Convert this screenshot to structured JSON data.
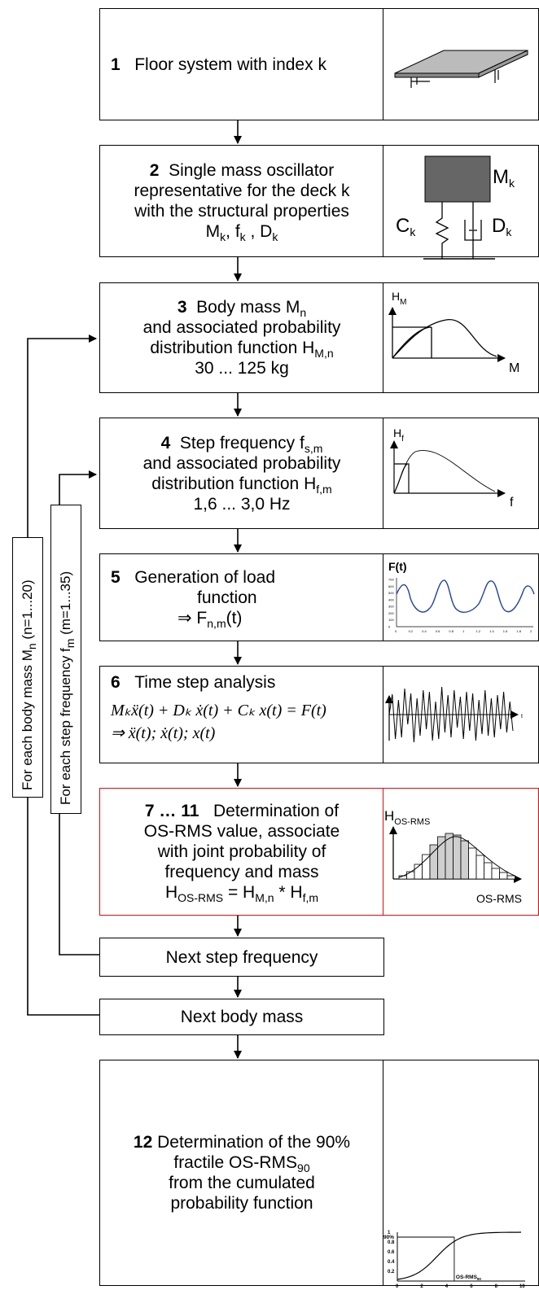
{
  "steps": {
    "s1": {
      "num": "1",
      "text": "Floor system with index k"
    },
    "s2": {
      "num": "2",
      "line1": "Single mass oscillator",
      "line2": "representative for the deck k",
      "line3": "with the structural properties",
      "l4a": "M",
      "l4a_sub": "k",
      "l4b": ", f",
      "l4b_sub": "k",
      "l4c": " , D",
      "l4c_sub": "k"
    },
    "s3": {
      "num": "3",
      "line1": "Body mass M",
      "line1_sub": "n",
      "line2": "and associated probability",
      "line3": "distribution function H",
      "line3_sub": "M,n",
      "line4": "30 ... 125 kg"
    },
    "s4": {
      "num": "4",
      "line1": "Step frequency f",
      "line1_sub": "s,m",
      "line2": "and associated probability",
      "line3": "distribution function H",
      "line3_sub": "f,m",
      "line4": "1,6 ... 3,0 Hz"
    },
    "s5": {
      "num": "5",
      "line1": "Generation of load",
      "line2": "function",
      "line3": "⇒ F",
      "line3_sub": "n,m",
      "line3_end": "(t)"
    },
    "s6": {
      "num": "6",
      "line1": "Time step analysis",
      "eq1": "Mₖẍ(t) + Dₖ ẋ(t) + Cₖ x(t) = F(t)",
      "eq2": "⇒ ẍ(t); ẋ(t); x(t)"
    },
    "s7": {
      "num": "7 … 11",
      "line1": "Determination of",
      "line2": "OS-RMS value, associate",
      "line3": "with joint probability of",
      "line4": "frequency and mass",
      "l5a": "H",
      "l5a_sub": "OS-RMS",
      "l5b": " = H",
      "l5b_sub": "M,n",
      "l5c": " * H",
      "l5c_sub": "f,m"
    },
    "next_freq": "Next step frequency",
    "next_mass": "Next body mass",
    "s12": {
      "num": "12",
      "line1": "Determination of the 90%",
      "line2": "fractile OS-RMS",
      "line2_sub": "90",
      "line3": "from the cumulated",
      "line4": "probability function"
    }
  },
  "loops": {
    "mass": {
      "text": "For each body mass M",
      "sub": "n",
      "end": " (n=1...20)"
    },
    "freq": {
      "text": "For each step frequency f",
      "sub": "m",
      "end": " (m=1...35)"
    }
  },
  "icons": {
    "oscillator": {
      "mass": "M",
      "mass_sub": "k",
      "spring": "C",
      "spring_sub": "k",
      "damper": "D",
      "damper_sub": "k"
    },
    "hm": {
      "ylabel": "H",
      "ylabel_sub": "M",
      "xlabel": "M"
    },
    "hf": {
      "ylabel": "H",
      "ylabel_sub": "f",
      "xlabel": "f"
    },
    "load": {
      "title": "F(t)",
      "yticks": [
        "700",
        "600",
        "500",
        "400",
        "300",
        "200",
        "100",
        "0"
      ],
      "xticks": [
        "0",
        "0.2",
        "0.4",
        "0.6",
        "0.8",
        "1",
        "1.2",
        "1.4",
        "1.6",
        "1.8",
        "2"
      ]
    },
    "timeseries": {
      "xlabel": "t"
    },
    "histogram": {
      "ylabel": "H",
      "ylabel_sub": "OS-RMS",
      "xlabel": "OS-RMS"
    },
    "cumulative": {
      "yticks": [
        "1",
        "0.8",
        "0.6",
        "0.4",
        "0.2",
        "0"
      ],
      "xticks": [
        "0",
        "2",
        "4",
        "6",
        "8",
        "10"
      ],
      "marker_y": "90%",
      "marker_x": "OS-RMS",
      "marker_x_sub": "90"
    }
  },
  "colors": {
    "line": "#000000",
    "highlight": "#d01010",
    "curve": "#1f3fa0",
    "mass_block": "#666666",
    "hist_bar": "#cfcfcf"
  }
}
